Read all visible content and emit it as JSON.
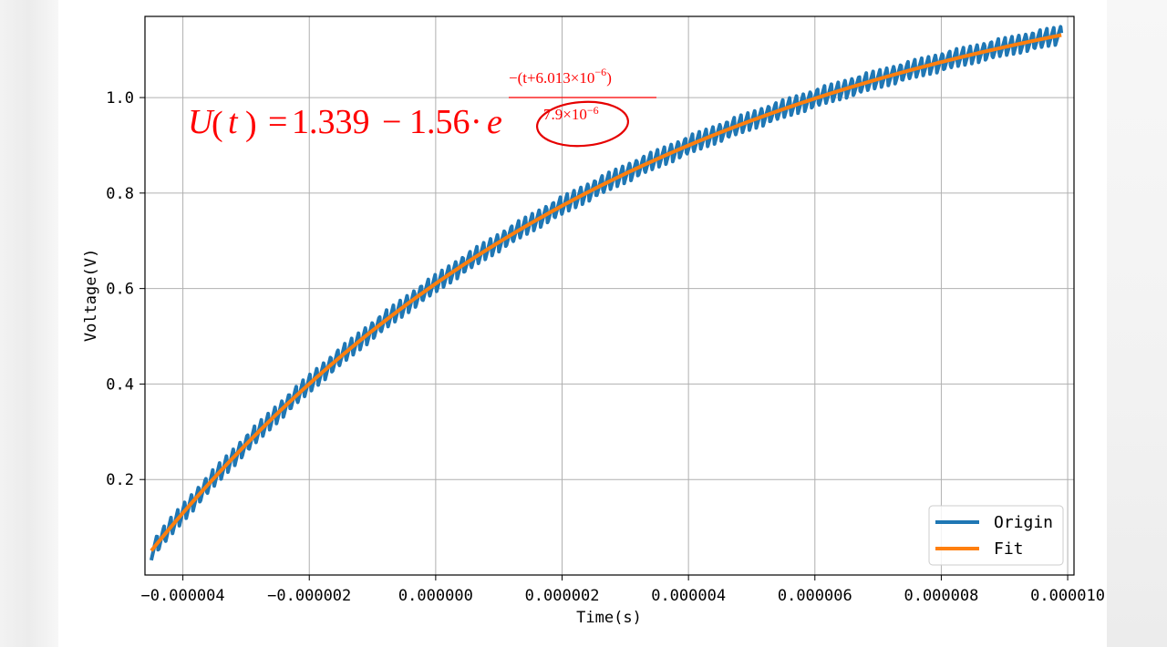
{
  "chart_data": {
    "type": "line",
    "xlabel": "Time(s)",
    "ylabel": "Voltage(V)",
    "xlim": [
      -4.6e-06,
      1.01e-05
    ],
    "ylim": [
      0.0,
      1.17
    ],
    "grid": true,
    "legend_position": "bottom-right",
    "x_ticks": [
      -4e-06,
      -2e-06,
      0.0,
      2e-06,
      4e-06,
      6e-06,
      8e-06,
      1e-05
    ],
    "x_tick_labels": [
      "−0.000004",
      "−0.000002",
      "0.000000",
      "0.000002",
      "0.000004",
      "0.000006",
      "0.000008",
      "0.000010"
    ],
    "y_ticks": [
      0.2,
      0.4,
      0.6,
      0.8,
      1.0
    ],
    "y_tick_labels": [
      "0.2",
      "0.4",
      "0.6",
      "0.8",
      "1.0"
    ],
    "series": [
      {
        "name": "Origin",
        "color": "#1f77b4",
        "x_start": -4.5e-06,
        "x_end": 9.9e-06,
        "points": 1200,
        "model": "1.339 - 1.56*exp(-(t+6.013e-6)/7.9e-6) + ripple",
        "ripple_amplitude": 0.02,
        "ripple_period": 1.1e-07
      },
      {
        "name": "Fit",
        "color": "#ff7f0e",
        "x_start": -4.5e-06,
        "x_end": 9.9e-06,
        "points": 300,
        "model": "1.339 - 1.56*exp(-(t+6.013e-6)/7.9e-6)"
      }
    ],
    "fit_params": {
      "A": 1.339,
      "B": 1.56,
      "t0": 6.013e-06,
      "tau": 7.9e-06
    }
  },
  "annotation": {
    "color": "#ff0000",
    "lhs_U": "U",
    "lhs_open": "(",
    "lhs_t": "t",
    "lhs_close": ")",
    "equals": "=",
    "a": "1.339",
    "minus": "−",
    "b": "1.56",
    "dot": "·",
    "e": "e",
    "exp_numerator": "−(t+6.013×10",
    "exp_numerator_power": "−6",
    "exp_numerator_close": ")",
    "exp_denominator": "7.9×10",
    "exp_denominator_power": "−6"
  }
}
